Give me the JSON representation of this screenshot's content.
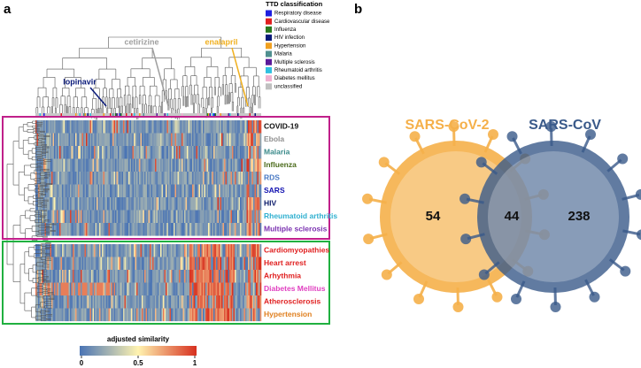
{
  "panel_a": {
    "label": "a",
    "legend": {
      "title": "TTD classification",
      "items": [
        {
          "name": "Respiratory disease",
          "color": "#1f1fe0"
        },
        {
          "name": "Cardiovascular disease",
          "color": "#e01f1f"
        },
        {
          "name": "Influenza",
          "color": "#2a7a1e"
        },
        {
          "name": "HIV infection",
          "color": "#0a1a7a"
        },
        {
          "name": "Hypertension",
          "color": "#f0a020"
        },
        {
          "name": "Malaria",
          "color": "#4f8f8f"
        },
        {
          "name": "Multiple sclerosis",
          "color": "#5a1a9a"
        },
        {
          "name": "Rheumatoid arthritis",
          "color": "#30c0e0"
        },
        {
          "name": "Diabetes mellitus",
          "color": "#f0b0d0"
        },
        {
          "name": "unclassified",
          "color": "#c0c0c0"
        }
      ]
    },
    "drug_labels": [
      {
        "text": "lopinavir",
        "color": "#0a1a7a"
      },
      {
        "text": "cetirizine",
        "color": "#a0a0a0"
      },
      {
        "text": "enalapril",
        "color": "#f0b020"
      }
    ],
    "viral_rows": [
      {
        "text": "COVID-19",
        "color": "#111"
      },
      {
        "text": "Ebola",
        "color": "#909090"
      },
      {
        "text": "Malaria",
        "color": "#3a8a8a"
      },
      {
        "text": "Influenza",
        "color": "#4a6a1a"
      },
      {
        "text": "RDS",
        "color": "#4a7ac4"
      },
      {
        "text": "SARS",
        "color": "#1010b0"
      },
      {
        "text": "HIV",
        "color": "#0a1a6a"
      },
      {
        "text": "Rheumatoid arthritis",
        "color": "#30b0d0"
      },
      {
        "text": "Multiple sclerosis",
        "color": "#7a30b0"
      }
    ],
    "cardio_rows": [
      {
        "text": "Cardiomyopathies",
        "color": "#e02020"
      },
      {
        "text": "Heart arrest",
        "color": "#e02020"
      },
      {
        "text": "Arhythmia",
        "color": "#e02020"
      },
      {
        "text": "Diabetes Mellitus",
        "color": "#e040c0"
      },
      {
        "text": "Atherosclerosis",
        "color": "#e02020"
      },
      {
        "text": "Hypertension",
        "color": "#e08020"
      }
    ],
    "colorbar": {
      "title": "adjusted similarity",
      "ticks": [
        0,
        0.5,
        1
      ]
    }
  },
  "panel_b": {
    "label": "b",
    "venn": {
      "left": {
        "name": "SARS-CoV-2",
        "color": "#f5b04a"
      },
      "right": {
        "name": "SARS-CoV",
        "color": "#3a5a8a"
      },
      "only_left": 54,
      "both": 44,
      "only_right": 238
    }
  }
}
